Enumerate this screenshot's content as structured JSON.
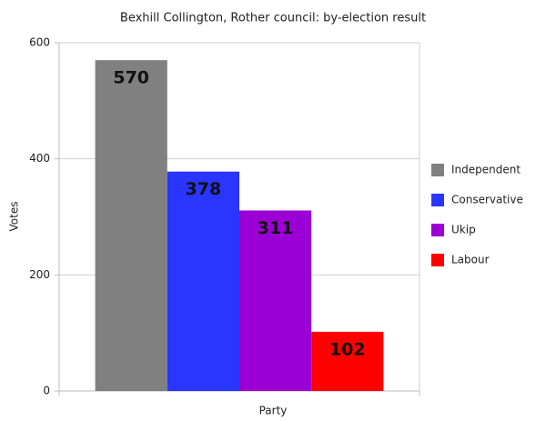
{
  "chart_data": {
    "type": "bar",
    "title": "Bexhill Collington, Rother council: by-election result",
    "xlabel": "Party",
    "ylabel": "Votes",
    "categories": [
      null
    ],
    "series": [
      {
        "name": "Independent",
        "color": "#808080",
        "values": [
          570
        ]
      },
      {
        "name": "Conservative",
        "color": "#2a35ff",
        "values": [
          378
        ]
      },
      {
        "name": "Ukip",
        "color": "#9b00d4",
        "values": [
          311
        ]
      },
      {
        "name": "Labour",
        "color": "#ff0000",
        "values": [
          102
        ]
      }
    ],
    "ylim": [
      0,
      600
    ],
    "yticks": [
      0,
      200,
      400,
      600
    ],
    "grid": true,
    "legend": "right"
  }
}
